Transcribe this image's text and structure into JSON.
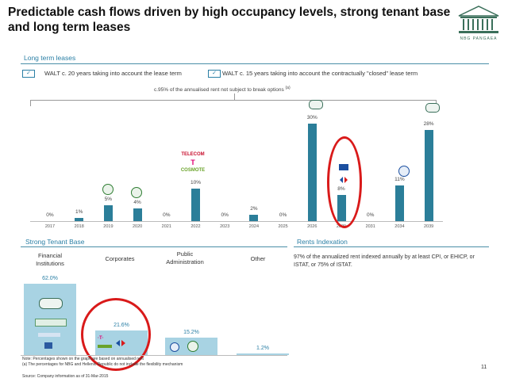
{
  "header": {
    "title": "Predictable cash flows driven by high occupancy levels, strong tenant base and long term leases",
    "logo_text": "NBG PANGAEA"
  },
  "lease": {
    "section_title": "Long term leases",
    "walt1": "WALT c. 20 years taking into account the lease term",
    "walt2": "WALT c. 15 years taking into account the contractually \"closed\" lease term",
    "break_note": "c.95% of the annualised rent not subject to break options",
    "break_note_sup": "(a)",
    "check": "✓"
  },
  "chart_data": [
    {
      "type": "bar",
      "categories": [
        "2017",
        "2018",
        "2019",
        "2020",
        "2021",
        "2022",
        "2023",
        "2024",
        "2025",
        "2026",
        "2029",
        "2031",
        "2034",
        "2039"
      ],
      "values": [
        0,
        1,
        5,
        4,
        0,
        10,
        0,
        2,
        0,
        30,
        8,
        0,
        11,
        28
      ],
      "labels": [
        "0%",
        "1%",
        "5%",
        "4%",
        "0%",
        "10%",
        "0%",
        "2%",
        "0%",
        "30%",
        "8%",
        "0%",
        "11%",
        "28%"
      ],
      "tenant_logos": {
        "2022": [
          "TELECOM",
          "COSMOTE"
        ]
      }
    },
    {
      "type": "bar",
      "title": "Strong Tenant Base",
      "categories": [
        "Financial Institutions",
        "Corporates",
        "Public Administration",
        "Other"
      ],
      "values": [
        62.0,
        21.6,
        15.2,
        1.2
      ],
      "labels": [
        "62.0%",
        "21.6%",
        "15.2%",
        "1.2%"
      ]
    }
  ],
  "tenants": {
    "section_title": "Strong Tenant Base",
    "categories": [
      "Financial\nInstitutions",
      "Corporates",
      "Public\nAdministration",
      "Other"
    ]
  },
  "rents": {
    "section_title": "Rents Indexation",
    "text": "97% of the annualized rent indexed annually by at least CPI, or EHICP, or ISTAT, or 75% of ISTAT."
  },
  "notes": {
    "line1": "Note: Percentages shown on the graph are based on annualised rent",
    "line2": "(a) The percentages for NBG and Hellenic Republic do not include the flexibility mechanism",
    "source": "Source: Company information as of 31-Mar-2015"
  },
  "page_number": "11",
  "colors": {
    "accent": "#2a7fa5",
    "bar": "#2b7e99",
    "tenant_bar": "#a8d3e3",
    "highlight": "#d91a1a"
  }
}
